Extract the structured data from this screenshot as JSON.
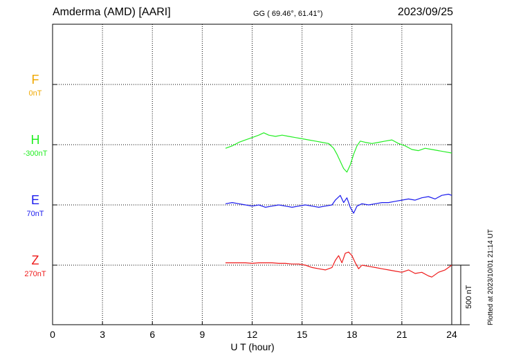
{
  "header": {
    "station": "Amderma (AMD)  [AARI]",
    "coords": "GG ( 69.46°,  61.41°)",
    "date": "2023/09/25"
  },
  "footnote": "Plotted at 2023/10/01 21:14 UT",
  "chart_data": {
    "type": "line",
    "title": "Amderma (AMD)  [AARI]",
    "xlabel": "U T (hour)",
    "ylabel": "",
    "xlim": [
      0,
      24
    ],
    "x_ticks": [
      0,
      3,
      6,
      9,
      12,
      15,
      18,
      21,
      24
    ],
    "scale_bar_nT": 500,
    "scale_label": "500 nT",
    "grid": true,
    "colors": {
      "F": "#f0a800",
      "H": "#22ee22",
      "E": "#1a1aee",
      "Z": "#ee1a1a"
    },
    "components": [
      {
        "name": "F",
        "baseline_label": "0nT"
      },
      {
        "name": "H",
        "baseline_label": "-300nT"
      },
      {
        "name": "E",
        "baseline_label": "70nT"
      },
      {
        "name": "Z",
        "baseline_label": "270nT"
      }
    ],
    "series": [
      {
        "name": "F",
        "x": [],
        "values": []
      },
      {
        "name": "H",
        "x": [
          10.4,
          10.8,
          11.2,
          11.6,
          12.0,
          12.4,
          12.7,
          13.0,
          13.4,
          13.8,
          14.2,
          14.6,
          15.0,
          15.4,
          15.8,
          16.2,
          16.6,
          16.9,
          17.1,
          17.3,
          17.5,
          17.7,
          17.9,
          18.1,
          18.3,
          18.5,
          18.8,
          19.2,
          19.6,
          20.0,
          20.4,
          20.8,
          21.2,
          21.6,
          22.0,
          22.4,
          22.8,
          23.2,
          23.6,
          24.0
        ],
        "values": [
          -30,
          -10,
          20,
          40,
          60,
          80,
          100,
          80,
          70,
          80,
          70,
          60,
          50,
          40,
          30,
          20,
          10,
          -30,
          -80,
          -140,
          -200,
          -230,
          -170,
          -80,
          -10,
          30,
          20,
          10,
          20,
          30,
          40,
          10,
          -10,
          -40,
          -50,
          -30,
          -40,
          -50,
          -60,
          -70
        ]
      },
      {
        "name": "E",
        "x": [
          10.4,
          10.8,
          11.2,
          11.6,
          12.0,
          12.4,
          12.8,
          13.2,
          13.6,
          14.0,
          14.4,
          14.8,
          15.2,
          15.6,
          16.0,
          16.4,
          16.8,
          17.0,
          17.3,
          17.5,
          17.7,
          17.9,
          18.1,
          18.3,
          18.6,
          19.0,
          19.4,
          19.8,
          20.2,
          20.6,
          21.0,
          21.4,
          21.8,
          22.2,
          22.6,
          23.0,
          23.4,
          23.8,
          24.0
        ],
        "values": [
          10,
          20,
          10,
          0,
          -10,
          0,
          -20,
          -10,
          0,
          -10,
          -20,
          -10,
          0,
          -10,
          -20,
          -10,
          0,
          40,
          80,
          20,
          60,
          -20,
          -70,
          -10,
          10,
          0,
          10,
          20,
          20,
          30,
          40,
          50,
          40,
          60,
          70,
          50,
          80,
          90,
          80
        ]
      },
      {
        "name": "Z",
        "x": [
          10.4,
          10.8,
          11.2,
          11.6,
          12.0,
          12.4,
          12.8,
          13.2,
          13.6,
          14.0,
          14.4,
          14.8,
          15.2,
          15.6,
          16.0,
          16.4,
          16.8,
          17.0,
          17.2,
          17.4,
          17.6,
          17.8,
          18.0,
          18.2,
          18.4,
          18.6,
          19.0,
          19.4,
          19.8,
          20.2,
          20.6,
          21.0,
          21.4,
          21.8,
          22.2,
          22.6,
          22.8,
          23.2,
          23.6,
          24.0
        ],
        "values": [
          20,
          20,
          20,
          20,
          15,
          20,
          20,
          20,
          15,
          15,
          10,
          10,
          0,
          -20,
          -30,
          -40,
          -20,
          40,
          80,
          20,
          100,
          110,
          80,
          20,
          -30,
          0,
          -10,
          -20,
          -30,
          -40,
          -50,
          -60,
          -40,
          -70,
          -60,
          -90,
          -100,
          -60,
          -40,
          0
        ]
      }
    ]
  }
}
